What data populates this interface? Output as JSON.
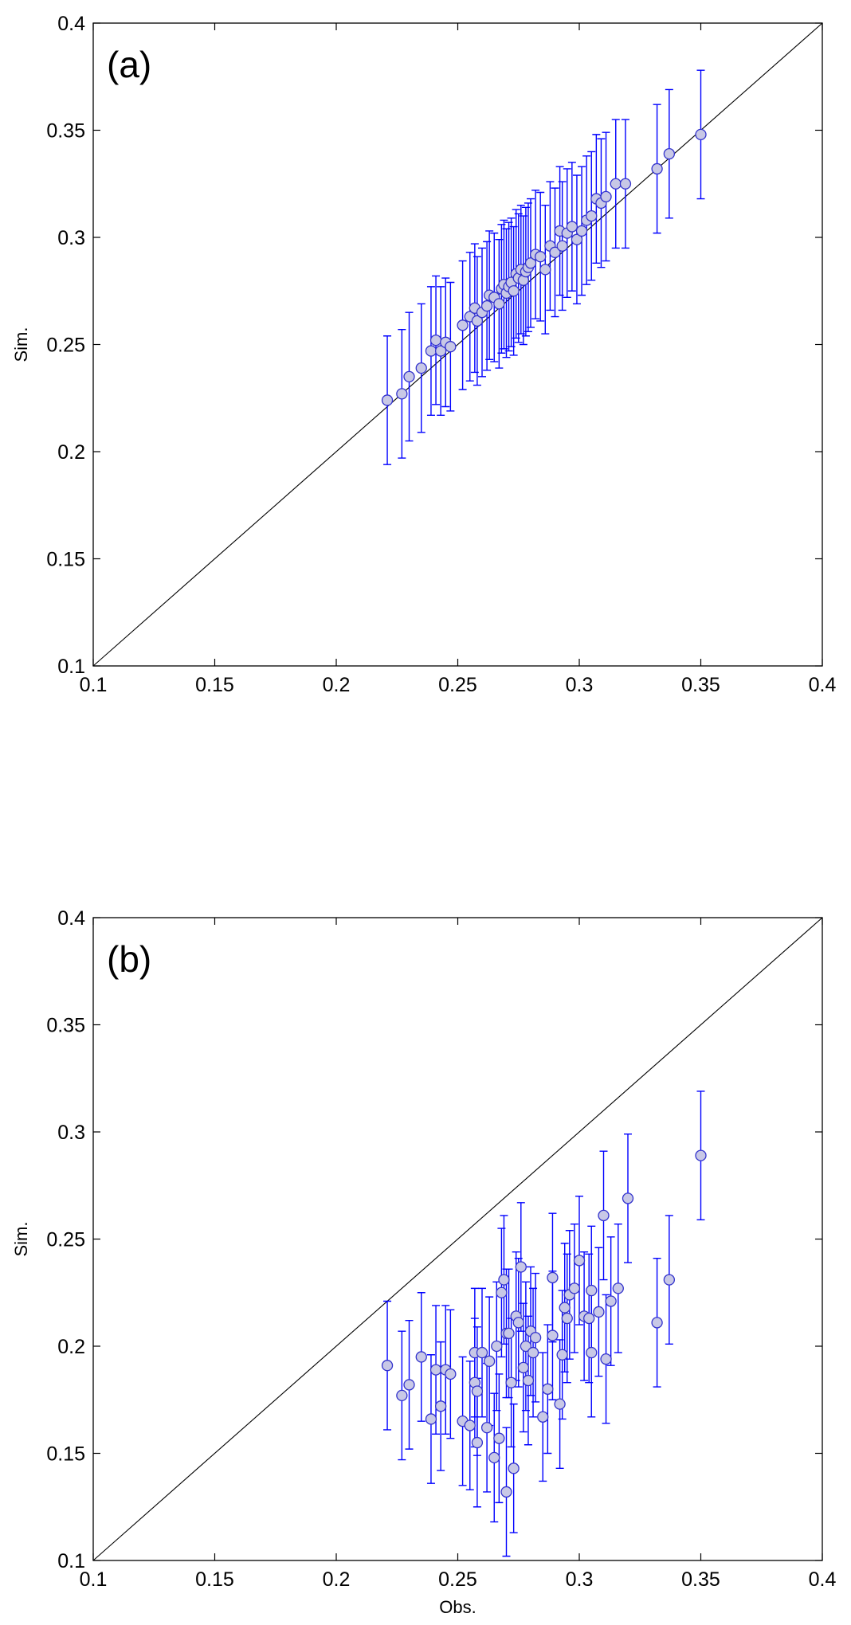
{
  "colors": {
    "errorbar": "#0000FF",
    "marker_fill": "#C8C8E6",
    "marker_edge": "#3333CC",
    "axes": "#000000",
    "identity_line": "#000000"
  },
  "chart_data": [
    {
      "type": "scatter",
      "panel_label": "(a)",
      "xlabel": "",
      "ylabel": "Sim.",
      "xlim": [
        0.1,
        0.4
      ],
      "ylim": [
        0.1,
        0.4
      ],
      "xticks": [
        "0.1",
        "0.15",
        "0.2",
        "0.25",
        "0.3",
        "0.35",
        "0.4"
      ],
      "yticks": [
        "0.1",
        "0.15",
        "0.2",
        "0.25",
        "0.3",
        "0.35",
        "0.4"
      ],
      "tick_values": [
        0.1,
        0.15,
        0.2,
        0.25,
        0.3,
        0.35,
        0.4
      ],
      "grid": false,
      "legend": "none",
      "reference_line": "y = x",
      "error_half_width": 0.03,
      "points": [
        {
          "x": 0.221,
          "y": 0.224
        },
        {
          "x": 0.227,
          "y": 0.227
        },
        {
          "x": 0.23,
          "y": 0.235
        },
        {
          "x": 0.235,
          "y": 0.239
        },
        {
          "x": 0.239,
          "y": 0.247
        },
        {
          "x": 0.241,
          "y": 0.252
        },
        {
          "x": 0.243,
          "y": 0.247
        },
        {
          "x": 0.245,
          "y": 0.251
        },
        {
          "x": 0.247,
          "y": 0.249
        },
        {
          "x": 0.252,
          "y": 0.259
        },
        {
          "x": 0.255,
          "y": 0.263
        },
        {
          "x": 0.257,
          "y": 0.267
        },
        {
          "x": 0.258,
          "y": 0.261
        },
        {
          "x": 0.26,
          "y": 0.265
        },
        {
          "x": 0.262,
          "y": 0.268
        },
        {
          "x": 0.263,
          "y": 0.273
        },
        {
          "x": 0.265,
          "y": 0.272
        },
        {
          "x": 0.267,
          "y": 0.269
        },
        {
          "x": 0.268,
          "y": 0.276
        },
        {
          "x": 0.269,
          "y": 0.278
        },
        {
          "x": 0.27,
          "y": 0.274
        },
        {
          "x": 0.271,
          "y": 0.277
        },
        {
          "x": 0.272,
          "y": 0.279
        },
        {
          "x": 0.273,
          "y": 0.275
        },
        {
          "x": 0.274,
          "y": 0.283
        },
        {
          "x": 0.275,
          "y": 0.281
        },
        {
          "x": 0.276,
          "y": 0.285
        },
        {
          "x": 0.277,
          "y": 0.28
        },
        {
          "x": 0.278,
          "y": 0.284
        },
        {
          "x": 0.279,
          "y": 0.286
        },
        {
          "x": 0.28,
          "y": 0.288
        },
        {
          "x": 0.282,
          "y": 0.292
        },
        {
          "x": 0.284,
          "y": 0.291
        },
        {
          "x": 0.286,
          "y": 0.285
        },
        {
          "x": 0.288,
          "y": 0.296
        },
        {
          "x": 0.29,
          "y": 0.293
        },
        {
          "x": 0.292,
          "y": 0.303
        },
        {
          "x": 0.293,
          "y": 0.296
        },
        {
          "x": 0.295,
          "y": 0.302
        },
        {
          "x": 0.297,
          "y": 0.305
        },
        {
          "x": 0.299,
          "y": 0.299
        },
        {
          "x": 0.301,
          "y": 0.303
        },
        {
          "x": 0.303,
          "y": 0.308
        },
        {
          "x": 0.305,
          "y": 0.31
        },
        {
          "x": 0.307,
          "y": 0.318
        },
        {
          "x": 0.309,
          "y": 0.316
        },
        {
          "x": 0.311,
          "y": 0.319
        },
        {
          "x": 0.315,
          "y": 0.325
        },
        {
          "x": 0.319,
          "y": 0.325
        },
        {
          "x": 0.332,
          "y": 0.332
        },
        {
          "x": 0.337,
          "y": 0.339
        },
        {
          "x": 0.35,
          "y": 0.348
        }
      ]
    },
    {
      "type": "scatter",
      "panel_label": "(b)",
      "xlabel": "Obs.",
      "ylabel": "Sim.",
      "xlim": [
        0.1,
        0.4
      ],
      "ylim": [
        0.1,
        0.4
      ],
      "xticks": [
        "0.1",
        "0.15",
        "0.2",
        "0.25",
        "0.3",
        "0.35",
        "0.4"
      ],
      "yticks": [
        "0.1",
        "0.15",
        "0.2",
        "0.25",
        "0.3",
        "0.35",
        "0.4"
      ],
      "tick_values": [
        0.1,
        0.15,
        0.2,
        0.25,
        0.3,
        0.35,
        0.4
      ],
      "grid": false,
      "legend": "none",
      "reference_line": "y = x",
      "error_half_width": 0.03,
      "points": [
        {
          "x": 0.221,
          "y": 0.191
        },
        {
          "x": 0.227,
          "y": 0.177
        },
        {
          "x": 0.23,
          "y": 0.182
        },
        {
          "x": 0.235,
          "y": 0.195
        },
        {
          "x": 0.239,
          "y": 0.166
        },
        {
          "x": 0.241,
          "y": 0.189
        },
        {
          "x": 0.243,
          "y": 0.172
        },
        {
          "x": 0.245,
          "y": 0.189
        },
        {
          "x": 0.247,
          "y": 0.187
        },
        {
          "x": 0.252,
          "y": 0.165
        },
        {
          "x": 0.255,
          "y": 0.163
        },
        {
          "x": 0.257,
          "y": 0.197
        },
        {
          "x": 0.257,
          "y": 0.183
        },
        {
          "x": 0.258,
          "y": 0.179
        },
        {
          "x": 0.258,
          "y": 0.155
        },
        {
          "x": 0.26,
          "y": 0.197
        },
        {
          "x": 0.262,
          "y": 0.162
        },
        {
          "x": 0.263,
          "y": 0.193
        },
        {
          "x": 0.265,
          "y": 0.148
        },
        {
          "x": 0.266,
          "y": 0.2
        },
        {
          "x": 0.267,
          "y": 0.157
        },
        {
          "x": 0.268,
          "y": 0.225
        },
        {
          "x": 0.269,
          "y": 0.231
        },
        {
          "x": 0.27,
          "y": 0.206
        },
        {
          "x": 0.27,
          "y": 0.132
        },
        {
          "x": 0.271,
          "y": 0.206
        },
        {
          "x": 0.272,
          "y": 0.183
        },
        {
          "x": 0.273,
          "y": 0.143
        },
        {
          "x": 0.274,
          "y": 0.214
        },
        {
          "x": 0.275,
          "y": 0.211
        },
        {
          "x": 0.276,
          "y": 0.237
        },
        {
          "x": 0.277,
          "y": 0.19
        },
        {
          "x": 0.278,
          "y": 0.2
        },
        {
          "x": 0.279,
          "y": 0.184
        },
        {
          "x": 0.28,
          "y": 0.207
        },
        {
          "x": 0.281,
          "y": 0.197
        },
        {
          "x": 0.282,
          "y": 0.204
        },
        {
          "x": 0.285,
          "y": 0.167
        },
        {
          "x": 0.287,
          "y": 0.18
        },
        {
          "x": 0.289,
          "y": 0.205
        },
        {
          "x": 0.289,
          "y": 0.232
        },
        {
          "x": 0.292,
          "y": 0.173
        },
        {
          "x": 0.293,
          "y": 0.196
        },
        {
          "x": 0.294,
          "y": 0.218
        },
        {
          "x": 0.295,
          "y": 0.213
        },
        {
          "x": 0.296,
          "y": 0.224
        },
        {
          "x": 0.298,
          "y": 0.227
        },
        {
          "x": 0.3,
          "y": 0.24
        },
        {
          "x": 0.302,
          "y": 0.214
        },
        {
          "x": 0.304,
          "y": 0.213
        },
        {
          "x": 0.305,
          "y": 0.226
        },
        {
          "x": 0.305,
          "y": 0.197
        },
        {
          "x": 0.308,
          "y": 0.216
        },
        {
          "x": 0.31,
          "y": 0.261
        },
        {
          "x": 0.311,
          "y": 0.194
        },
        {
          "x": 0.313,
          "y": 0.221
        },
        {
          "x": 0.316,
          "y": 0.227
        },
        {
          "x": 0.32,
          "y": 0.269
        },
        {
          "x": 0.332,
          "y": 0.211
        },
        {
          "x": 0.337,
          "y": 0.231
        },
        {
          "x": 0.35,
          "y": 0.289
        }
      ]
    }
  ]
}
